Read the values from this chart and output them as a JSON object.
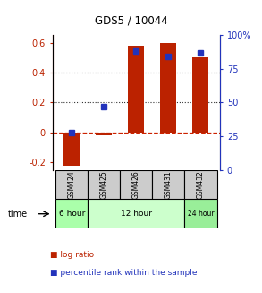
{
  "title": "GDS5 / 10044",
  "samples": [
    "GSM424",
    "GSM425",
    "GSM426",
    "GSM431",
    "GSM432"
  ],
  "log_ratios": [
    -0.22,
    -0.02,
    0.58,
    0.6,
    0.5
  ],
  "percentile_ranks": [
    28,
    47,
    88,
    84,
    87
  ],
  "ylim_left": [
    -0.25,
    0.65
  ],
  "ylim_right": [
    0,
    100
  ],
  "yticks_left": [
    -0.2,
    0.0,
    0.2,
    0.4,
    0.6
  ],
  "yticks_right": [
    0,
    25,
    50,
    75,
    100
  ],
  "hlines": [
    0.2,
    0.4
  ],
  "time_colors": {
    "6 hour": "#aaffaa",
    "12 hour": "#ccffcc",
    "24 hour": "#99ee99"
  },
  "bar_color": "#bb2200",
  "dot_color": "#2233bb",
  "zero_line_color": "#cc2200",
  "dotted_line_color": "#333333",
  "bg_color": "#ffffff",
  "sample_bg": "#cccccc"
}
